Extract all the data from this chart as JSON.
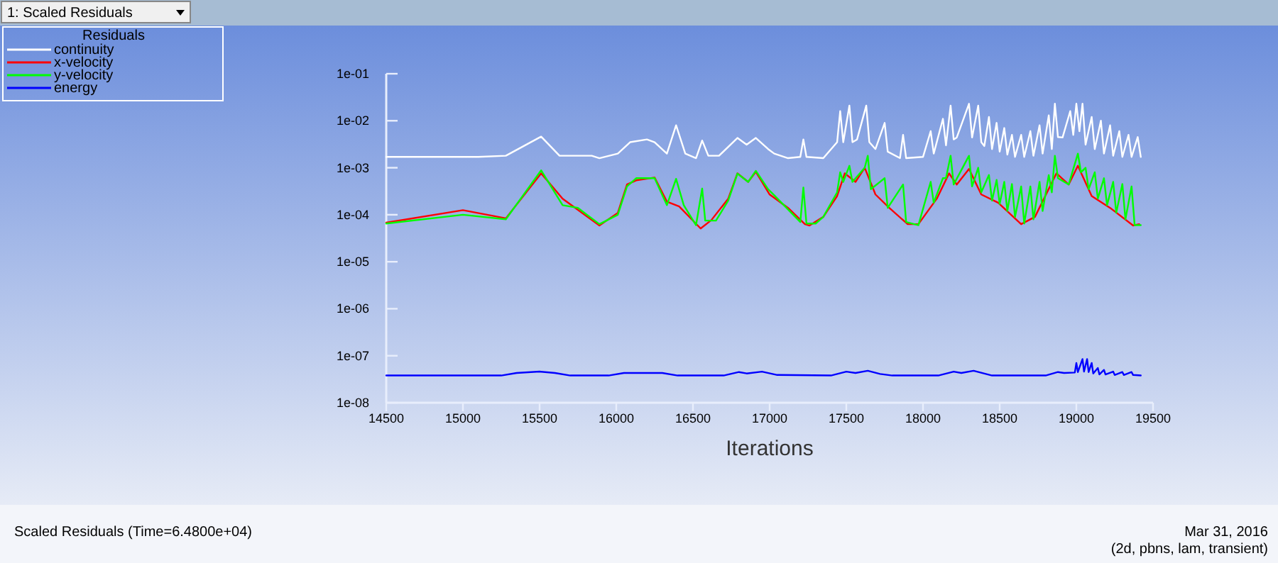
{
  "chart_data": {
    "type": "line",
    "xlabel": "Iterations",
    "legend_title": "Residuals",
    "legend": "top left",
    "log": true,
    "grid": false,
    "xlim": [
      14500,
      19500
    ],
    "xticks": [
      14500,
      15000,
      15500,
      16000,
      16500,
      17000,
      17500,
      18000,
      18500,
      19000,
      19500
    ],
    "ylim": [
      1e-08,
      0.1
    ],
    "yticks": [
      {
        "value": 1e-08,
        "label": "1e-08"
      },
      {
        "value": 1e-07,
        "label": "1e-07"
      },
      {
        "value": 1e-06,
        "label": "1e-06"
      },
      {
        "value": 1e-05,
        "label": "1e-05"
      },
      {
        "value": 0.0001,
        "label": "1e-04"
      },
      {
        "value": 0.001,
        "label": "1e-03"
      },
      {
        "value": 0.01,
        "label": "1e-02"
      },
      {
        "value": 0.1,
        "label": "1e-01"
      }
    ],
    "annotations": [
      "1: Scaled Residuals",
      "Scaled Residuals  (Time=6.4800e+04)",
      "Mar 31, 2016",
      "(2d, pbns, lam, transient)"
    ],
    "series": [
      {
        "name": "continuity",
        "color": "#ffffff",
        "x": [
          14500,
          15100,
          15280,
          15510,
          15630,
          15840,
          15890,
          16010,
          16090,
          16200,
          16250,
          16330,
          16390,
          16450,
          16520,
          16560,
          16600,
          16670,
          16790,
          16850,
          16910,
          16990,
          17030,
          17120,
          17200,
          17220,
          17240,
          17350,
          17440,
          17460,
          17480,
          17520,
          17540,
          17570,
          17630,
          17650,
          17690,
          17750,
          17770,
          17850,
          17870,
          17890,
          18000,
          18050,
          18070,
          18130,
          18150,
          18180,
          18200,
          18220,
          18300,
          18320,
          18360,
          18380,
          18400,
          18430,
          18450,
          18480,
          18500,
          18530,
          18550,
          18580,
          18600,
          18640,
          18660,
          18700,
          18720,
          18760,
          18780,
          18820,
          18840,
          18860,
          18880,
          18910,
          18960,
          18980,
          19000,
          19020,
          19040,
          19060,
          19100,
          19120,
          19160,
          19180,
          19220,
          19240,
          19280,
          19300,
          19340,
          19360,
          19400,
          19420
        ],
        "values": [
          0.0017,
          0.0017,
          0.0018,
          0.0046,
          0.0018,
          0.0018,
          0.0016,
          0.002,
          0.0035,
          0.004,
          0.0035,
          0.002,
          0.008,
          0.002,
          0.0016,
          0.0038,
          0.0018,
          0.0018,
          0.0043,
          0.0031,
          0.0043,
          0.0025,
          0.002,
          0.0016,
          0.0017,
          0.004,
          0.0017,
          0.0016,
          0.0035,
          0.016,
          0.0035,
          0.021,
          0.0035,
          0.004,
          0.021,
          0.0035,
          0.0025,
          0.009,
          0.0022,
          0.0016,
          0.005,
          0.0016,
          0.0017,
          0.006,
          0.002,
          0.011,
          0.003,
          0.021,
          0.004,
          0.0044,
          0.023,
          0.0044,
          0.021,
          0.0035,
          0.0029,
          0.012,
          0.0025,
          0.009,
          0.0022,
          0.007,
          0.0019,
          0.005,
          0.0017,
          0.005,
          0.0017,
          0.006,
          0.0018,
          0.008,
          0.002,
          0.013,
          0.0025,
          0.023,
          0.0045,
          0.0044,
          0.016,
          0.005,
          0.023,
          0.006,
          0.023,
          0.0031,
          0.012,
          0.0025,
          0.01,
          0.002,
          0.008,
          0.0018,
          0.006,
          0.0017,
          0.005,
          0.0017,
          0.0045,
          0.0017
        ]
      },
      {
        "name": "x-velocity",
        "color": "#ff0000",
        "x": [
          14500,
          15000,
          15280,
          15510,
          15650,
          15890,
          16010,
          16070,
          16130,
          16250,
          16330,
          16410,
          16550,
          16620,
          16730,
          16790,
          16860,
          16910,
          17000,
          17120,
          17230,
          17260,
          17350,
          17440,
          17490,
          17560,
          17620,
          17690,
          17780,
          17900,
          17970,
          18090,
          18170,
          18220,
          18300,
          18380,
          18490,
          18640,
          18730,
          18870,
          18950,
          19010,
          19100,
          19220,
          19370,
          19410
        ],
        "values": [
          6.8e-05,
          0.000125,
          8.4e-05,
          0.00076,
          0.00022,
          5.9e-05,
          0.00011,
          0.00044,
          0.00054,
          0.00062,
          0.00019,
          0.00015,
          5.1e-05,
          7.7e-05,
          0.00022,
          0.00076,
          0.0005,
          0.00082,
          0.00027,
          0.00014,
          6.3e-05,
          5.9e-05,
          9e-05,
          0.00025,
          0.00076,
          0.0005,
          0.001,
          0.00027,
          0.00014,
          6.3e-05,
          6.3e-05,
          0.00022,
          0.00076,
          0.00044,
          0.00094,
          0.00027,
          0.00018,
          6.3e-05,
          9e-05,
          0.00076,
          0.00044,
          0.0011,
          0.00025,
          0.00014,
          5.9e-05,
          6.3e-05
        ]
      },
      {
        "name": "y-velocity",
        "color": "#00ff00",
        "x": [
          14500,
          15000,
          15280,
          15510,
          15650,
          15750,
          15890,
          16010,
          16070,
          16130,
          16250,
          16330,
          16390,
          16440,
          16520,
          16560,
          16580,
          16650,
          16730,
          16790,
          16860,
          16910,
          16990,
          17030,
          17120,
          17200,
          17220,
          17240,
          17300,
          17350,
          17440,
          17460,
          17480,
          17520,
          17540,
          17620,
          17640,
          17660,
          17750,
          17770,
          17870,
          17890,
          17970,
          18050,
          18070,
          18130,
          18150,
          18180,
          18200,
          18300,
          18320,
          18360,
          18380,
          18430,
          18450,
          18480,
          18500,
          18530,
          18550,
          18580,
          18600,
          18640,
          18660,
          18700,
          18720,
          18760,
          18780,
          18820,
          18840,
          18860,
          18880,
          18950,
          19010,
          19030,
          19060,
          19080,
          19120,
          19140,
          19180,
          19200,
          19240,
          19260,
          19300,
          19320,
          19360,
          19380,
          19420
        ],
        "values": [
          6.5e-05,
          0.0001,
          8e-05,
          0.00088,
          0.00016,
          0.00014,
          6.3e-05,
          0.0001,
          0.0004,
          0.0006,
          0.0006,
          0.00016,
          0.00058,
          0.00016,
          6e-05,
          0.00036,
          7.5e-05,
          7.5e-05,
          0.0002,
          0.00075,
          0.0005,
          0.00086,
          0.00035,
          0.00026,
          0.00013,
          7e-05,
          0.00038,
          6.5e-05,
          6.5e-05,
          9e-05,
          0.0003,
          0.0008,
          0.0005,
          0.0011,
          0.0005,
          0.001,
          0.0018,
          0.00035,
          0.0006,
          0.00014,
          0.00044,
          7e-05,
          6e-05,
          0.0005,
          0.00018,
          0.0006,
          0.0006,
          0.0018,
          0.00044,
          0.0018,
          0.0004,
          0.001,
          0.0003,
          0.0007,
          0.0002,
          0.00055,
          0.00017,
          0.0005,
          0.00012,
          0.00045,
          9e-05,
          0.0004,
          6.5e-05,
          0.0004,
          8e-05,
          0.0005,
          0.00012,
          0.0007,
          0.0003,
          0.0018,
          0.0006,
          0.00044,
          0.002,
          0.0008,
          0.001,
          0.00035,
          0.0008,
          0.00022,
          0.0006,
          0.00016,
          0.0005,
          0.00011,
          0.00045,
          8e-05,
          0.0004,
          6e-05,
          6e-05
        ]
      },
      {
        "name": "energy",
        "color": "#0000ff",
        "x": [
          14500,
          15250,
          15350,
          15500,
          15600,
          15700,
          15950,
          16050,
          16300,
          16400,
          16700,
          16800,
          16850,
          16950,
          17050,
          17400,
          17500,
          17560,
          17640,
          17720,
          17800,
          18100,
          18200,
          18250,
          18330,
          18450,
          18800,
          18880,
          18920,
          18990,
          19000,
          19010,
          19040,
          19050,
          19070,
          19080,
          19100,
          19110,
          19140,
          19150,
          19180,
          19190,
          19240,
          19250,
          19300,
          19310,
          19360,
          19370,
          19420
        ],
        "values": [
          3.8e-08,
          3.8e-08,
          4.3e-08,
          4.6e-08,
          4.3e-08,
          3.8e-08,
          3.8e-08,
          4.3e-08,
          4.3e-08,
          3.8e-08,
          3.8e-08,
          4.5e-08,
          4.2e-08,
          4.6e-08,
          3.9e-08,
          3.8e-08,
          4.6e-08,
          4.3e-08,
          4.8e-08,
          4.1e-08,
          3.8e-08,
          3.8e-08,
          4.6e-08,
          4.3e-08,
          4.8e-08,
          3.8e-08,
          3.8e-08,
          4.5e-08,
          4.3e-08,
          4.4e-08,
          7e-08,
          4.5e-08,
          8.5e-08,
          4.6e-08,
          8.5e-08,
          4.5e-08,
          7e-08,
          4.2e-08,
          5.5e-08,
          4e-08,
          5e-08,
          4e-08,
          4.6e-08,
          3.9e-08,
          4.5e-08,
          3.9e-08,
          4.5e-08,
          3.9e-08,
          3.8e-08
        ]
      }
    ]
  }
}
